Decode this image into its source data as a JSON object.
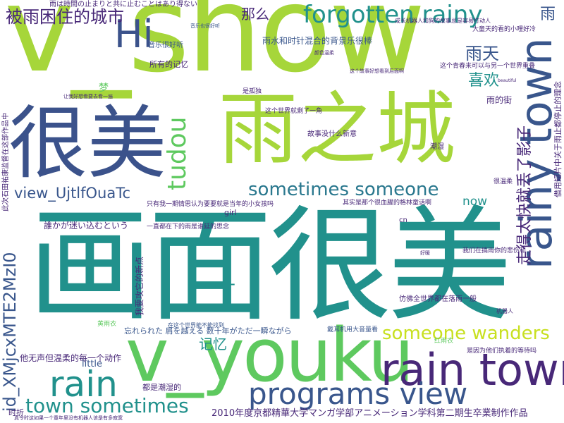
{
  "palette": {
    "lime": "#a6d63a",
    "green": "#5ec95f",
    "teal": "#21918c",
    "blue": "#3b528b",
    "purple": "#482878",
    "navy": "#39568c",
    "yellow": "#c8e020",
    "sea": "#2a788e"
  },
  "words": [
    {
      "text": "v_show"
    },
    {
      "text": "画面很美"
    },
    {
      "text": "雨之城"
    },
    {
      "text": "很美"
    },
    {
      "text": "v_youku"
    },
    {
      "text": "rain town"
    },
    {
      "text": "rainy town"
    },
    {
      "text": "forgotten rainy"
    },
    {
      "text": "rain"
    },
    {
      "text": "programs view"
    },
    {
      "text": "Hi"
    },
    {
      "text": "tudou"
    },
    {
      "text": "sometimes someone"
    },
    {
      "text": "someone wanders"
    },
    {
      "text": "town sometimes"
    },
    {
      "text": "view_UjtlfOuaTc"
    },
    {
      "text": "id_XMjcxMTE2MzI0"
    },
    {
      "text": "被雨困住的城市"
    },
    {
      "text": "走得太快就丢了影子"
    },
    {
      "text": "2010年度京都精華大学マンガ学部アニメーション学科第二期生卒業制作作品"
    },
    {
      "text": "雨天"
    },
    {
      "text": "喜欢"
    },
    {
      "text": "那么"
    },
    {
      "text": "记忆"
    },
    {
      "text": "now"
    },
    {
      "text": "雨"
    },
    {
      "text": "雨水和时针混合的背景乐很棒"
    },
    {
      "text": "所有的记忆"
    },
    {
      "text": "音乐很好听"
    },
    {
      "text": "雨は時間の止まりと共に止むことはあり得ない"
    },
    {
      "text": "誰かが迷い込むという"
    },
    {
      "text": "忘れられた 肩を越える 数十年がただ一瞬ながら"
    },
    {
      "text": "一直都在下的雨是谁延的思念"
    },
    {
      "text": "只有我一期情思认为要要就是当年的小女孩吗"
    },
    {
      "text": "其实是那个很血腥的格林童话啊"
    },
    {
      "text": "他无声但温柔的每一个动作"
    },
    {
      "text": "故事没什么新意"
    },
    {
      "text": "这个世界就剩了一角"
    },
    {
      "text": "T"
    },
    {
      "text": "little"
    },
    {
      "text": "girl"
    },
    {
      "text": "时折"
    },
    {
      "text": "cn"
    },
    {
      "text": "都是潮湿的"
    },
    {
      "text": "仿佛全世界都在落雨一般"
    },
    {
      "text": "戴耳机用大音量看"
    },
    {
      "text": "我们在搞雨你的悲伤和"
    },
    {
      "text": "是因为他们执着的等待吗"
    },
    {
      "text": "雨的街"
    },
    {
      "text": "很温柔"
    },
    {
      "text": "潮湿"
    },
    {
      "text": "是孤独"
    },
    {
      "text": "大童天的看的小哩好冷"
    },
    {
      "text": "这个青春来可以与另一个世界重叠"
    },
    {
      "text": "成长机器人和狗的故事总是容易打动人"
    },
    {
      "text": "借用短片中关于雨止都停止的理念"
    },
    {
      "text": "此次石田祐康监督在这部作品中"
    },
    {
      "text": "黄雨衣"
    },
    {
      "text": "红雨衣"
    },
    {
      "text": "我要攻它的新点"
    },
    {
      "text": "在这个世界能不能找到"
    },
    {
      "text": "梦"
    },
    {
      "text": "beautiful"
    },
    {
      "text": "真令时这如果一个童年里没有机器人该是有多寂寞"
    },
    {
      "text": "让我好想看要去看一遍"
    },
    {
      "text": "音乐也很好听"
    },
    {
      "text": "这个故事好想看到后面啊"
    },
    {
      "text": "颜色温柔"
    },
    {
      "text": "好暖"
    },
    {
      "text": "机器人"
    }
  ]
}
